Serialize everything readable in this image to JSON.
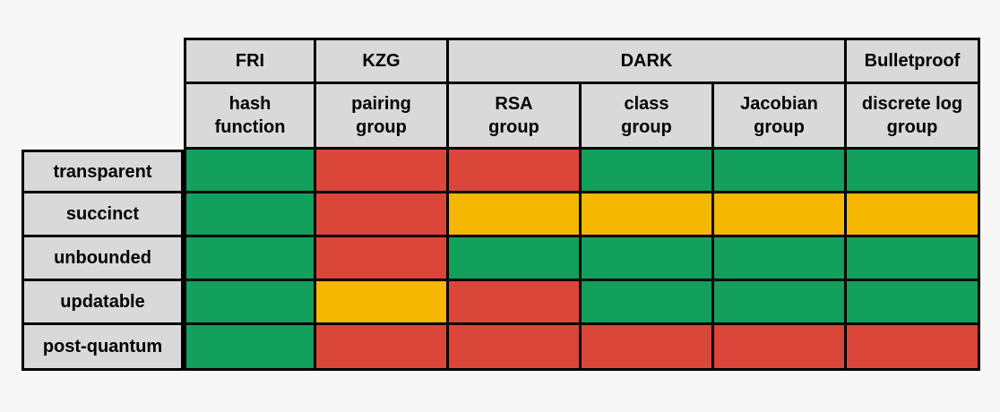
{
  "colors": {
    "green": "#12a05c",
    "red": "#db463b",
    "yellow": "#f5b700",
    "header_bg": "#d9d9d9"
  },
  "groups": [
    {
      "label": "FRI",
      "span": 1
    },
    {
      "label": "KZG",
      "span": 1
    },
    {
      "label": "DARK",
      "span": 3
    },
    {
      "label": "Bulletproof",
      "span": 1
    }
  ],
  "columns": [
    "hash\nfunction",
    "pairing\ngroup",
    "RSA\ngroup",
    "class\ngroup",
    "Jacobian\ngroup",
    "discrete log\ngroup"
  ],
  "rows": [
    {
      "label": "transparent",
      "values": [
        "green",
        "red",
        "red",
        "green",
        "green",
        "green"
      ]
    },
    {
      "label": "succinct",
      "values": [
        "green",
        "red",
        "yellow",
        "yellow",
        "yellow",
        "yellow"
      ]
    },
    {
      "label": "unbounded",
      "values": [
        "green",
        "red",
        "green",
        "green",
        "green",
        "green"
      ]
    },
    {
      "label": "updatable",
      "values": [
        "green",
        "yellow",
        "red",
        "green",
        "green",
        "green"
      ]
    },
    {
      "label": "post-quantum",
      "values": [
        "green",
        "red",
        "red",
        "red",
        "red",
        "red"
      ]
    }
  ]
}
